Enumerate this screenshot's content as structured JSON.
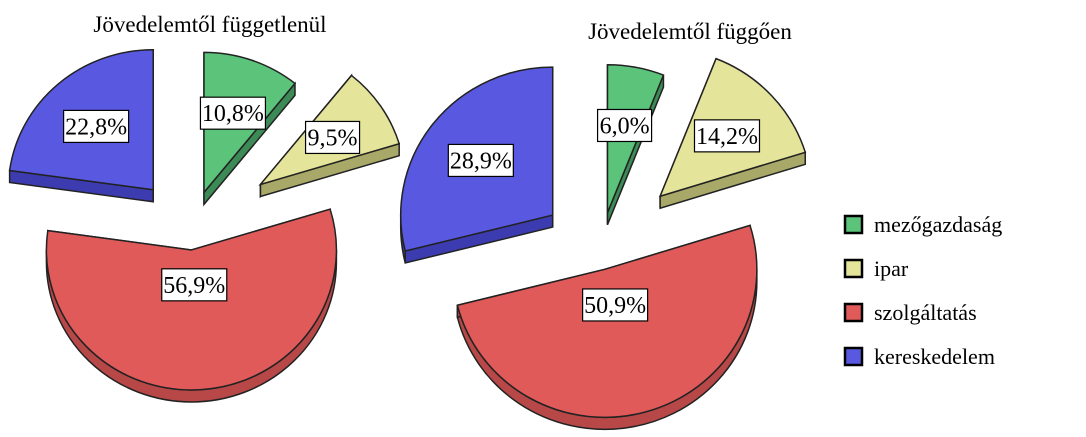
{
  "chart_data": [
    {
      "type": "pie",
      "title": "Jövedelemtől függetlenül",
      "categories": [
        "mezőgazdaság",
        "ipar",
        "szolgáltatás",
        "kereskedelem"
      ],
      "values": [
        10.8,
        9.5,
        56.9,
        22.8
      ],
      "labels": [
        "10,8%",
        "9,5%",
        "56,9%",
        "22,8%"
      ],
      "exploded": true,
      "style": "3d"
    },
    {
      "type": "pie",
      "title": "Jövedelemtől függően",
      "categories": [
        "mezőgazdaság",
        "ipar",
        "szolgáltatás",
        "kereskedelem"
      ],
      "values": [
        6.0,
        14.2,
        50.9,
        28.9
      ],
      "labels": [
        "6,0%",
        "14,2%",
        "50,9%",
        "28,9%"
      ],
      "exploded": true,
      "style": "3d"
    }
  ],
  "legend": {
    "position": "right",
    "items": [
      {
        "label": "mezőgazdaság",
        "color": "#5bc47a"
      },
      {
        "label": "ipar",
        "color": "#e4e49a"
      },
      {
        "label": "szolgáltatás",
        "color": "#e05a5a"
      },
      {
        "label": "kereskedelem",
        "color": "#5858e0"
      }
    ]
  },
  "colors": {
    "mezőgazdaság": {
      "top": "#5bc47a",
      "side": "#3c8a55"
    },
    "ipar": {
      "top": "#e4e49a",
      "side": "#a8a868"
    },
    "szolgáltatás": {
      "top": "#e05a5a",
      "side": "#b84848"
    },
    "kereskedelem": {
      "top": "#5858e0",
      "side": "#3c3cb0"
    }
  }
}
